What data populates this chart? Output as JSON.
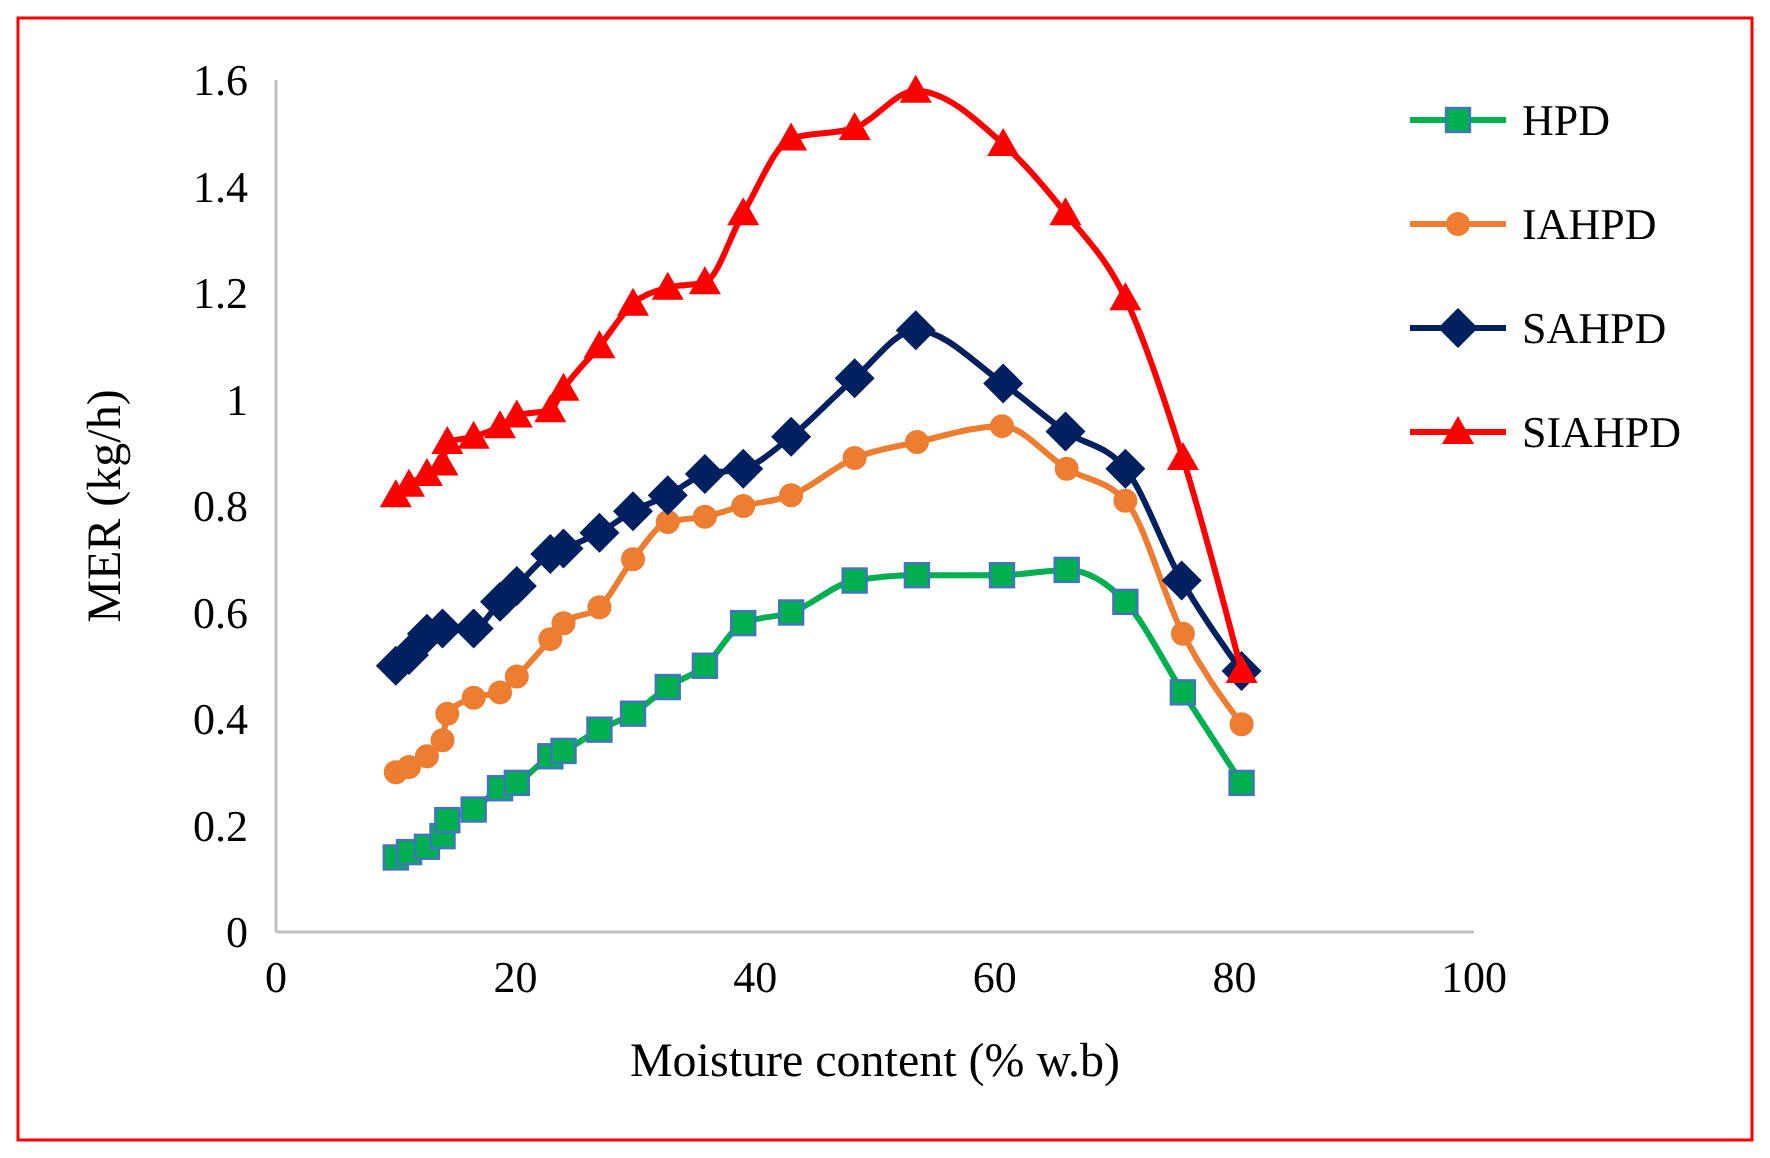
{
  "chart_data": {
    "type": "line",
    "xlabel": "Moisture content (% w.b)",
    "ylabel": "MER (kg/h)",
    "xlim": [
      0,
      100
    ],
    "xticks": [
      0,
      20,
      40,
      60,
      80,
      100
    ],
    "ylim": [
      0,
      1.6
    ],
    "yticks": [
      0,
      0.2,
      0.4,
      0.6,
      0.8,
      1,
      1.2,
      1.4,
      1.6
    ],
    "grid": false,
    "legend": "right",
    "line_style": "solid",
    "series": [
      {
        "name": "HPD",
        "color": "#00b050",
        "marker": "square",
        "x": [
          10.0,
          11.1,
          12.6,
          13.9,
          14.3,
          16.5,
          18.7,
          20.1,
          22.9,
          24.0,
          27.0,
          29.8,
          32.7,
          35.8,
          39.0,
          43.0,
          48.3,
          53.5,
          60.6,
          66.0,
          70.9,
          75.7,
          80.6
        ],
        "values": [
          0.14,
          0.15,
          0.16,
          0.18,
          0.21,
          0.23,
          0.27,
          0.28,
          0.33,
          0.34,
          0.38,
          0.41,
          0.46,
          0.5,
          0.58,
          0.6,
          0.66,
          0.67,
          0.67,
          0.68,
          0.62,
          0.45,
          0.28
        ]
      },
      {
        "name": "IAHPD",
        "color": "#ed7d31",
        "marker": "circle",
        "x": [
          10.0,
          11.1,
          12.6,
          13.9,
          14.3,
          16.5,
          18.7,
          20.1,
          22.9,
          24.0,
          27.0,
          29.8,
          32.7,
          35.8,
          39.0,
          43.0,
          48.3,
          53.5,
          60.6,
          66.0,
          70.9,
          75.7,
          80.6
        ],
        "values": [
          0.3,
          0.31,
          0.33,
          0.36,
          0.41,
          0.44,
          0.45,
          0.48,
          0.55,
          0.58,
          0.61,
          0.7,
          0.77,
          0.78,
          0.8,
          0.82,
          0.89,
          0.92,
          0.95,
          0.87,
          0.81,
          0.56,
          0.39
        ]
      },
      {
        "name": "SAHPD",
        "color": "#002060",
        "marker": "diamond",
        "x": [
          10.0,
          11.1,
          12.6,
          13.9,
          16.5,
          18.7,
          20.1,
          22.9,
          24.0,
          27.0,
          29.8,
          32.7,
          35.8,
          39.0,
          43.0,
          48.3,
          53.4,
          60.7,
          65.9,
          70.9,
          75.6,
          80.6
        ],
        "values": [
          0.5,
          0.52,
          0.56,
          0.57,
          0.57,
          0.62,
          0.65,
          0.71,
          0.72,
          0.75,
          0.79,
          0.82,
          0.86,
          0.87,
          0.93,
          1.04,
          1.13,
          1.03,
          0.94,
          0.87,
          0.66,
          0.49
        ]
      },
      {
        "name": "SIAHPD",
        "color": "#ff0000",
        "marker": "triangle",
        "x": [
          10.0,
          11.1,
          12.6,
          13.9,
          14.3,
          16.5,
          18.7,
          20.1,
          22.9,
          24.0,
          27.0,
          29.8,
          32.7,
          35.8,
          39.0,
          43.0,
          48.3,
          53.4,
          60.7,
          65.9,
          70.9,
          75.7,
          80.6
        ],
        "values": [
          0.82,
          0.84,
          0.86,
          0.88,
          0.92,
          0.93,
          0.95,
          0.97,
          0.98,
          1.02,
          1.1,
          1.18,
          1.21,
          1.22,
          1.35,
          1.49,
          1.51,
          1.58,
          1.48,
          1.35,
          1.19,
          0.89,
          0.49
        ]
      }
    ]
  }
}
